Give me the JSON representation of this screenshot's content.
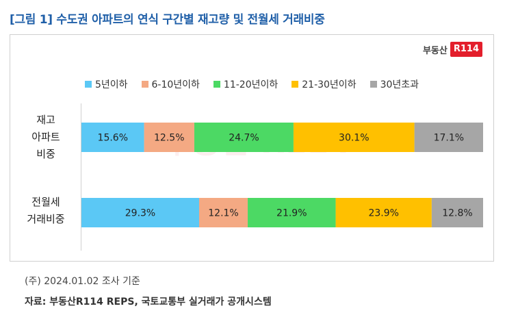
{
  "title": "[그림 1] 수도권 아파트의 연식 구간별 재고량 및 전월세 거래비중",
  "logo": {
    "text": "부동산",
    "badge": "R114"
  },
  "note": "(주) 2024.01.02 조사 기준",
  "source": "자료: 부동산R114 REPS, 국토교통부 실거래가 공개시스템",
  "chart_data": {
    "type": "bar",
    "orientation": "horizontal",
    "stacked": true,
    "normalized_percent": true,
    "categories": [
      "재고 아파트 비중",
      "전월세 거래비중"
    ],
    "category_lines": [
      [
        "재고",
        "아파트",
        "비중"
      ],
      [
        "전월세",
        "거래비중"
      ]
    ],
    "series": [
      {
        "name": "5년이하",
        "color": "#5bc8f5",
        "values": [
          15.6,
          29.3
        ],
        "labels": [
          "15.6%",
          "29.3%"
        ]
      },
      {
        "name": "6-10년이하",
        "color": "#f4a983",
        "values": [
          12.5,
          12.1
        ],
        "labels": [
          "12.5%",
          "12.1%"
        ]
      },
      {
        "name": "11-20년이하",
        "color": "#4cd964",
        "values": [
          24.7,
          21.9
        ],
        "labels": [
          "24.7%",
          "21.9%"
        ]
      },
      {
        "name": "21-30년이하",
        "color": "#ffc000",
        "values": [
          30.1,
          23.9
        ],
        "labels": [
          "30.1%",
          "23.9%"
        ]
      },
      {
        "name": "30년초과",
        "color": "#a6a6a6",
        "values": [
          17.1,
          12.8
        ],
        "labels": [
          "17.1%",
          "12.8%"
        ]
      }
    ],
    "xlim": [
      0,
      100
    ],
    "legend_position": "top-center",
    "grid": false
  }
}
